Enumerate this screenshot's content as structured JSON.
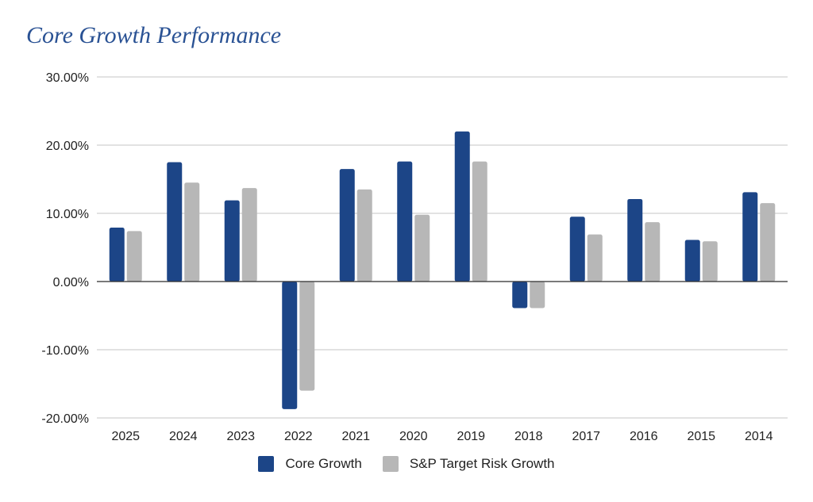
{
  "chart_data": {
    "type": "bar",
    "title": "Core Growth Performance",
    "xlabel": "",
    "ylabel": "",
    "categories": [
      "2025",
      "2024",
      "2023",
      "2022",
      "2021",
      "2020",
      "2019",
      "2018",
      "2017",
      "2016",
      "2015",
      "2014"
    ],
    "series": [
      {
        "name": "Core Growth",
        "color": "#1c4587",
        "values": [
          7.9,
          17.5,
          11.9,
          -18.7,
          16.5,
          17.6,
          22.0,
          -3.9,
          9.5,
          12.1,
          6.1,
          13.1
        ]
      },
      {
        "name": "S&P Target Risk Growth",
        "color": "#b7b7b7",
        "values": [
          7.4,
          14.5,
          13.7,
          -16.0,
          13.5,
          9.8,
          17.6,
          -3.9,
          6.9,
          8.7,
          5.9,
          11.5
        ]
      }
    ],
    "ylim": [
      -20,
      30
    ],
    "yticks": [
      30,
      20,
      10,
      0,
      -10,
      -20
    ],
    "ytick_labels": [
      "30.00%",
      "20.00%",
      "10.00%",
      "0.00%",
      "-10.00%",
      "-20.00%"
    ],
    "grid": true,
    "legend": "bottom"
  }
}
